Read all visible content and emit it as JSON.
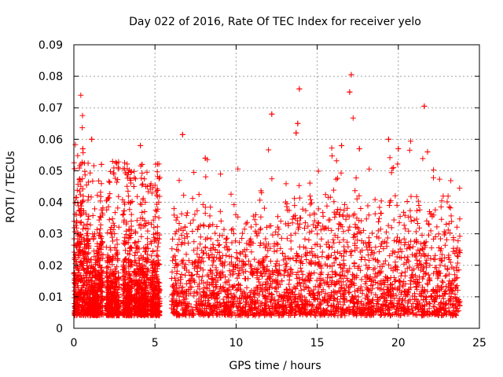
{
  "chart_data": {
    "type": "scatter",
    "title": "Day 022 of 2016, Rate Of TEC Index for receiver yelo",
    "xlabel": "GPS time / hours",
    "ylabel": "ROTI / TECUs",
    "xlim": [
      0,
      25
    ],
    "ylim": [
      0,
      0.09
    ],
    "x_ticks": [
      0,
      5,
      10,
      15,
      20,
      25
    ],
    "x_tick_labels": [
      "0",
      "5",
      "10",
      "15",
      "20",
      "25"
    ],
    "y_ticks": [
      0,
      0.01,
      0.02,
      0.03,
      0.04,
      0.05,
      0.06,
      0.07,
      0.08,
      0.09
    ],
    "y_tick_labels": [
      "0",
      "0.01",
      "0.02",
      "0.03",
      "0.04",
      "0.05",
      "0.06",
      "0.07",
      "0.08",
      "0.09"
    ],
    "grid": true,
    "marker": "+",
    "color": "#ff0000",
    "data_coverage_hours": [
      [
        0,
        1.8
      ],
      [
        2.0,
        2.8
      ],
      [
        3.0,
        3.6
      ],
      [
        3.7,
        4.6
      ],
      [
        4.7,
        5.3
      ],
      [
        5.9,
        23.8
      ]
    ],
    "notable_points": [
      {
        "x": 17.1,
        "y": 0.0805
      },
      {
        "x": 13.9,
        "y": 0.076
      },
      {
        "x": 17.0,
        "y": 0.075
      },
      {
        "x": 21.6,
        "y": 0.0705
      },
      {
        "x": 12.2,
        "y": 0.068
      },
      {
        "x": 13.8,
        "y": 0.065
      },
      {
        "x": 13.7,
        "y": 0.062
      },
      {
        "x": 6.7,
        "y": 0.0615
      },
      {
        "x": 1.1,
        "y": 0.06
      },
      {
        "x": 19.4,
        "y": 0.06
      },
      {
        "x": 4.1,
        "y": 0.058
      },
      {
        "x": 0.55,
        "y": 0.057
      },
      {
        "x": 20.0,
        "y": 0.057
      },
      {
        "x": 17.6,
        "y": 0.057
      },
      {
        "x": 16.5,
        "y": 0.058
      },
      {
        "x": 8.1,
        "y": 0.054
      },
      {
        "x": 1.7,
        "y": 0.052
      },
      {
        "x": 4.2,
        "y": 0.052
      },
      {
        "x": 21.8,
        "y": 0.056
      },
      {
        "x": 3.7,
        "y": 0.045
      }
    ]
  }
}
